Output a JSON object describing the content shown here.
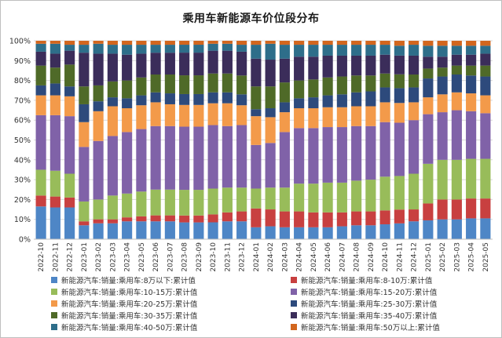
{
  "chart_data": {
    "type": "bar",
    "stacked": true,
    "percent": true,
    "title": "乘用车新能源车价位段分布",
    "xlabel": "",
    "ylabel": "",
    "ylim": [
      0,
      100
    ],
    "yticks": [
      "0%",
      "10%",
      "20%",
      "30%",
      "40%",
      "50%",
      "60%",
      "70%",
      "80%",
      "90%",
      "100%"
    ],
    "grid": true,
    "legend_position": "bottom",
    "categories": [
      "2022-10",
      "2022-11",
      "2022-12",
      "2023-01",
      "2023-02",
      "2023-03",
      "2023-04",
      "2023-05",
      "2023-06",
      "2023-07",
      "2023-08",
      "2023-09",
      "2023-10",
      "2023-11",
      "2023-12",
      "2024-01",
      "2024-02",
      "2024-03",
      "2024-04",
      "2024-05",
      "2024-06",
      "2024-07",
      "2024-08",
      "2024-09",
      "2024-10",
      "2024-11",
      "2024-12",
      "2025-01",
      "2025-02",
      "2025-03",
      "2025-04",
      "2025-05"
    ],
    "series": [
      {
        "name": "新能源汽车:销量:乘用车:8万以下:累计值",
        "color": "#4e86c6",
        "values": [
          16.5,
          16,
          16,
          7,
          8,
          8,
          9,
          9,
          9,
          9,
          8.5,
          8.5,
          8.5,
          9,
          9,
          6,
          6.5,
          6,
          6,
          6,
          6,
          6.5,
          7,
          7,
          7.5,
          8,
          9,
          9.5,
          10,
          10,
          10.5,
          10.5
        ]
      },
      {
        "name": "新能源汽车:销量:乘用车:8-10万:累计值",
        "color": "#c84040",
        "values": [
          5.5,
          5.5,
          5,
          2,
          2,
          2,
          2,
          2.5,
          3,
          3,
          3.5,
          3.5,
          4,
          4.5,
          5,
          9.5,
          8.5,
          8,
          8,
          7.5,
          7.5,
          7,
          7,
          7,
          7,
          7,
          6,
          8.5,
          10,
          10,
          10,
          10
        ]
      },
      {
        "name": "新能源汽车:销量:乘用车:10-15万:累计值",
        "color": "#98bc5a",
        "values": [
          13,
          13,
          12,
          10,
          10,
          12,
          12,
          12.5,
          13,
          13,
          13,
          13,
          13,
          12.5,
          12,
          10,
          11,
          12,
          14,
          14.5,
          15,
          15,
          15.5,
          16,
          17,
          17,
          18,
          20,
          20,
          20,
          20,
          20
        ]
      },
      {
        "name": "新能源汽车:销量:乘用车:15-20万:累计值",
        "color": "#8062a8",
        "values": [
          27.5,
          28,
          29,
          27.5,
          29.5,
          30,
          31,
          31.5,
          32,
          32,
          32,
          32,
          32,
          31,
          31.5,
          22,
          22.5,
          28,
          28,
          28,
          28,
          28,
          27.5,
          27,
          27.5,
          27,
          27,
          25,
          24,
          25,
          24,
          23
        ]
      },
      {
        "name": "新能源汽车:销量:乘用车:20-25万:累计值",
        "color": "#f39a4a",
        "values": [
          10,
          10,
          10,
          12.5,
          15,
          15,
          12,
          12,
          12,
          11,
          11,
          11,
          11,
          11.5,
          10,
          14.5,
          13,
          10,
          10,
          10,
          10,
          10,
          10,
          10,
          10,
          10,
          9,
          8.5,
          9,
          9,
          9,
          9
        ]
      },
      {
        "name": "新能源汽车:销量:乘用车:25-30万:累计值",
        "color": "#2d4a7c",
        "values": [
          5,
          6,
          5,
          9,
          5,
          4.5,
          5,
          5,
          5,
          5.5,
          5.5,
          5.5,
          5.5,
          5.5,
          5.5,
          3.5,
          4.5,
          5,
          5,
          5.5,
          6,
          6.5,
          7,
          7.5,
          7.5,
          7.5,
          7.5,
          9.5,
          9,
          9,
          9,
          9.5
        ]
      },
      {
        "name": "新能源汽车:销量:乘用车:30-35万:累计值",
        "color": "#4f6a28",
        "values": [
          10,
          8,
          11,
          9,
          8,
          8,
          9,
          9,
          9,
          9.5,
          9.5,
          9.5,
          9.5,
          9.5,
          9.5,
          11.5,
          11,
          10,
          9,
          9,
          9,
          9,
          8.5,
          8,
          7,
          7,
          6.5,
          5,
          4.5,
          4.5,
          5,
          5.5
        ]
      },
      {
        "name": "新能源汽车:销量:乘用车:35-40万:累计值",
        "color": "#3b2d5a",
        "values": [
          7,
          7,
          7,
          17,
          16,
          14,
          13,
          12,
          11,
          11,
          11.5,
          11.5,
          11.5,
          11.5,
          12,
          14,
          13.5,
          12,
          12,
          11.5,
          11,
          10.5,
          10,
          10,
          9.5,
          9.5,
          9.5,
          6,
          5.5,
          5.5,
          5.5,
          6
        ]
      },
      {
        "name": "新能源汽车:销量:乘用车:40-50万:累计值",
        "color": "#2e6e8a",
        "values": [
          4,
          5,
          3,
          4,
          5,
          4.5,
          5,
          4.5,
          4,
          4,
          4,
          4,
          3.5,
          3.5,
          3.5,
          7,
          8,
          7,
          6,
          6,
          5.5,
          5.5,
          5.5,
          5.5,
          5,
          5,
          5.5,
          5.5,
          5.5,
          4.5,
          4.5,
          4
        ]
      },
      {
        "name": "新能源汽车:销量:乘用车:50万以上:累计值",
        "color": "#d2661e",
        "values": [
          1.5,
          1.5,
          2,
          2,
          1.5,
          2,
          2,
          2,
          2,
          2,
          2,
          2,
          1.5,
          1.5,
          2,
          2,
          1.5,
          2,
          2,
          2,
          2,
          2,
          2,
          2,
          2,
          2.5,
          2,
          2.5,
          2.5,
          2.5,
          2.5,
          2.5
        ]
      }
    ]
  }
}
